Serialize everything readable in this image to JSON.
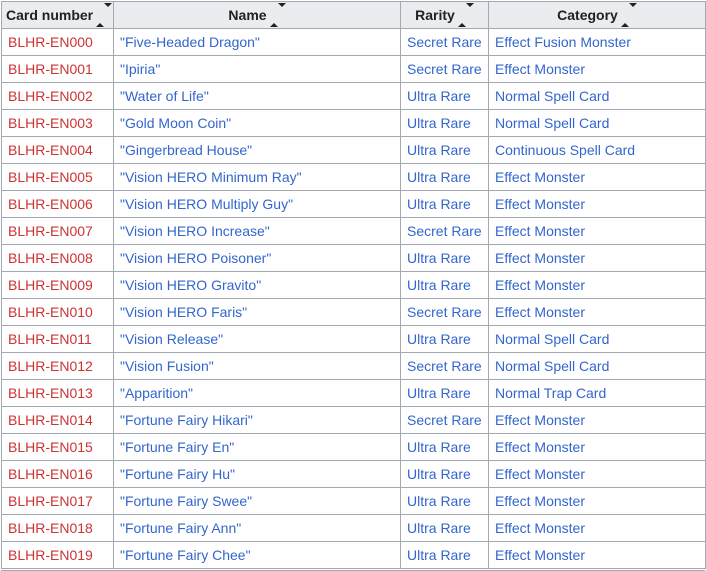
{
  "colors": {
    "header_bg": "#eaecf0",
    "table_border": "#a2a9b1",
    "red_link": "#cc3333",
    "blue_link": "#3366cc",
    "header_text": "#202122"
  },
  "table": {
    "headers": [
      {
        "label": "Card number"
      },
      {
        "label": "Name"
      },
      {
        "label": "Rarity"
      },
      {
        "label": "Category"
      }
    ],
    "rows": [
      {
        "number": "BLHR-EN000",
        "name": "\"Five-Headed Dragon\"",
        "rarity": "Secret Rare",
        "category": "Effect Fusion Monster"
      },
      {
        "number": "BLHR-EN001",
        "name": "\"Ipiria\"",
        "rarity": "Secret Rare",
        "category": "Effect Monster"
      },
      {
        "number": "BLHR-EN002",
        "name": "\"Water of Life\"",
        "rarity": "Ultra Rare",
        "category": "Normal Spell Card"
      },
      {
        "number": "BLHR-EN003",
        "name": "\"Gold Moon Coin\"",
        "rarity": "Ultra Rare",
        "category": "Normal Spell Card"
      },
      {
        "number": "BLHR-EN004",
        "name": "\"Gingerbread House\"",
        "rarity": "Ultra Rare",
        "category": "Continuous Spell Card"
      },
      {
        "number": "BLHR-EN005",
        "name": "\"Vision HERO Minimum Ray\"",
        "rarity": "Ultra Rare",
        "category": "Effect Monster"
      },
      {
        "number": "BLHR-EN006",
        "name": "\"Vision HERO Multiply Guy\"",
        "rarity": "Ultra Rare",
        "category": "Effect Monster"
      },
      {
        "number": "BLHR-EN007",
        "name": "\"Vision HERO Increase\"",
        "rarity": "Secret Rare",
        "category": "Effect Monster"
      },
      {
        "number": "BLHR-EN008",
        "name": "\"Vision HERO Poisoner\"",
        "rarity": "Ultra Rare",
        "category": "Effect Monster"
      },
      {
        "number": "BLHR-EN009",
        "name": "\"Vision HERO Gravito\"",
        "rarity": "Ultra Rare",
        "category": "Effect Monster"
      },
      {
        "number": "BLHR-EN010",
        "name": "\"Vision HERO Faris\"",
        "rarity": "Secret Rare",
        "category": "Effect Monster"
      },
      {
        "number": "BLHR-EN011",
        "name": "\"Vision Release\"",
        "rarity": "Ultra Rare",
        "category": "Normal Spell Card"
      },
      {
        "number": "BLHR-EN012",
        "name": "\"Vision Fusion\"",
        "rarity": "Secret Rare",
        "category": "Normal Spell Card"
      },
      {
        "number": "BLHR-EN013",
        "name": "\"Apparition\"",
        "rarity": "Ultra Rare",
        "category": "Normal Trap Card"
      },
      {
        "number": "BLHR-EN014",
        "name": "\"Fortune Fairy Hikari\"",
        "rarity": "Secret Rare",
        "category": "Effect Monster"
      },
      {
        "number": "BLHR-EN015",
        "name": "\"Fortune Fairy En\"",
        "rarity": "Ultra Rare",
        "category": "Effect Monster"
      },
      {
        "number": "BLHR-EN016",
        "name": "\"Fortune Fairy Hu\"",
        "rarity": "Ultra Rare",
        "category": "Effect Monster"
      },
      {
        "number": "BLHR-EN017",
        "name": "\"Fortune Fairy Swee\"",
        "rarity": "Ultra Rare",
        "category": "Effect Monster"
      },
      {
        "number": "BLHR-EN018",
        "name": "\"Fortune Fairy Ann\"",
        "rarity": "Ultra Rare",
        "category": "Effect Monster"
      },
      {
        "number": "BLHR-EN019",
        "name": "\"Fortune Fairy Chee\"",
        "rarity": "Ultra Rare",
        "category": "Effect Monster"
      }
    ]
  }
}
